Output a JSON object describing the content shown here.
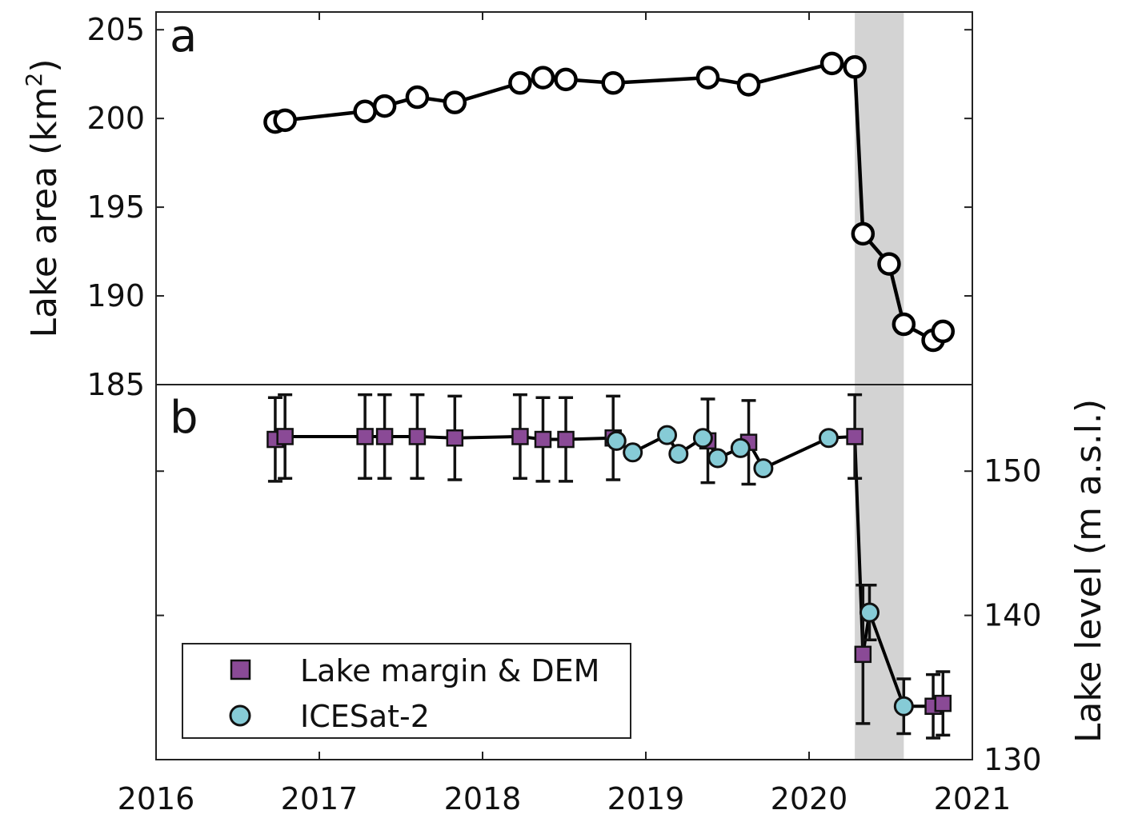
{
  "chart_data": [
    {
      "panel_label": "a",
      "type": "line",
      "ylabel": "Lake area (km",
      "ylabel_sup": "2",
      "ylabel_close": ")",
      "ylim": [
        185,
        206
      ],
      "yticks": [
        185,
        190,
        195,
        200,
        205
      ],
      "xlim": [
        2016,
        2021
      ],
      "marker": "open-circle",
      "series": [
        {
          "name": "Lake area",
          "x": [
            2016.73,
            2016.79,
            2017.28,
            2017.4,
            2017.6,
            2017.83,
            2018.23,
            2018.37,
            2018.51,
            2018.8,
            2019.38,
            2019.63,
            2020.14,
            2020.28,
            2020.33,
            2020.49,
            2020.58,
            2020.76,
            2020.82
          ],
          "y": [
            199.8,
            199.9,
            200.4,
            200.7,
            201.2,
            200.9,
            202.0,
            202.3,
            202.2,
            202.0,
            202.3,
            201.9,
            203.1,
            202.9,
            193.5,
            191.8,
            188.4,
            187.5,
            188.0
          ]
        }
      ]
    },
    {
      "panel_label": "b",
      "type": "line",
      "ylabel": "Lake level (m a.s.l.)",
      "ylim": [
        130,
        156
      ],
      "yticks": [
        130,
        140,
        150
      ],
      "xlim": [
        2016,
        2021
      ],
      "xticks": [
        2016,
        2017,
        2018,
        2019,
        2020,
        2021
      ],
      "legend_position": "bottom-left",
      "series": [
        {
          "name": "Lake margin & DEM",
          "marker": "square",
          "x": [
            2016.73,
            2016.79,
            2017.28,
            2017.4,
            2017.6,
            2017.83,
            2018.23,
            2018.37,
            2018.51,
            2018.8,
            2019.38,
            2019.63,
            2020.28,
            2020.33,
            2020.76,
            2020.82
          ],
          "y": [
            152.2,
            152.4,
            152.4,
            152.4,
            152.4,
            152.3,
            152.4,
            152.2,
            152.2,
            152.3,
            152.1,
            152.0,
            152.4,
            137.3,
            133.7,
            133.9
          ],
          "yerr": [
            2.9,
            2.9,
            2.9,
            2.9,
            2.9,
            2.9,
            2.9,
            2.9,
            2.9,
            2.9,
            2.9,
            2.9,
            2.9,
            4.8,
            2.2,
            2.2
          ]
        },
        {
          "name": "ICESat-2",
          "marker": "circle",
          "x": [
            2018.82,
            2018.92,
            2019.13,
            2019.2,
            2019.35,
            2019.44,
            2019.58,
            2019.72,
            2020.12,
            2020.37,
            2020.58
          ],
          "y": [
            152.1,
            151.3,
            152.5,
            151.2,
            152.3,
            150.9,
            151.6,
            150.2,
            152.3,
            140.2,
            133.7
          ],
          "yerr": [
            0,
            0,
            0,
            0,
            0,
            0,
            0,
            0,
            0,
            1.9,
            1.9
          ]
        }
      ],
      "shaded_span": [
        2020.28,
        2020.58
      ]
    }
  ],
  "colors": {
    "square_fill": "#8a4a96",
    "circle_fill": "#86cbd6",
    "shade": "#d3d3d3",
    "line": "#000000"
  }
}
